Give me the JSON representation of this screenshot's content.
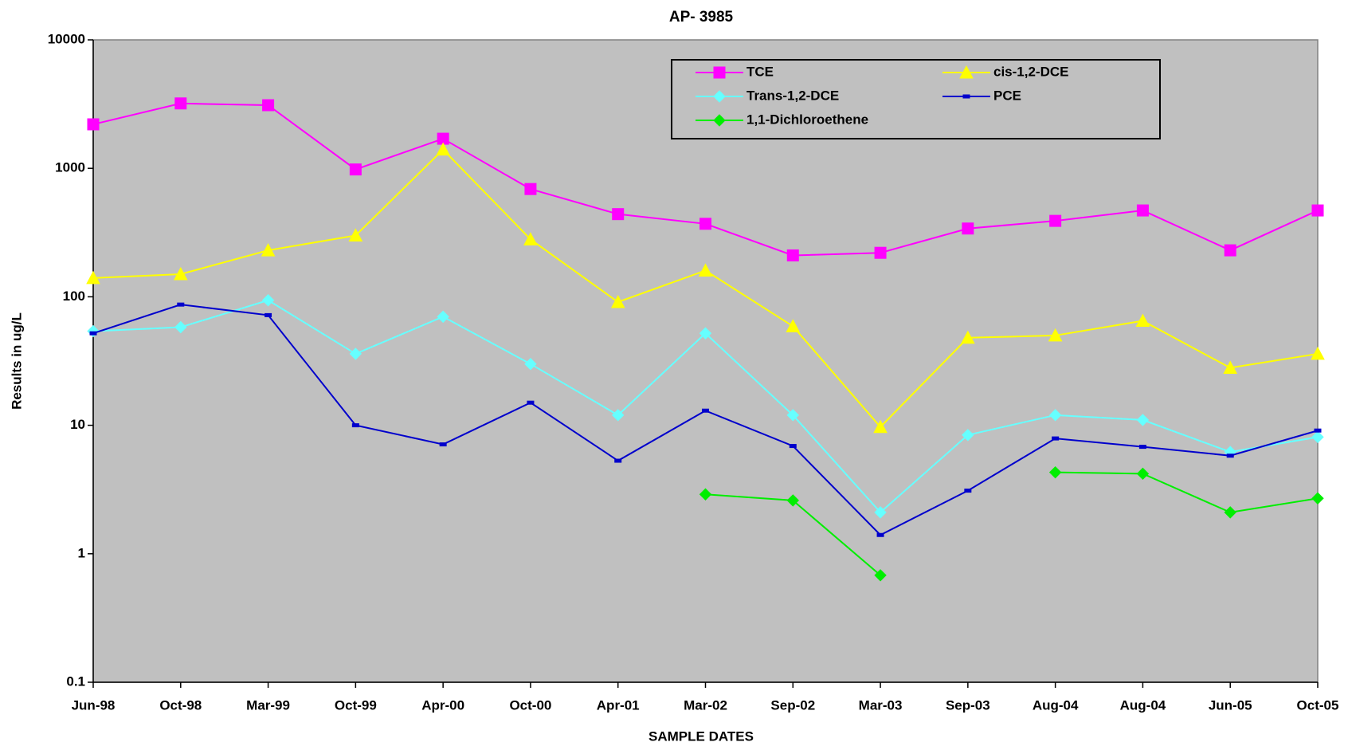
{
  "chart_data": {
    "type": "line",
    "title": "AP- 3985",
    "x_label": "SAMPLE DATES",
    "y_label": "Results in ug/L",
    "log_scale": true,
    "grid": false,
    "legend": "top-right",
    "plot_background": "#c0c0c0",
    "categories": [
      "Jun-98",
      "Oct-98",
      "Mar-99",
      "Oct-99",
      "Apr-00",
      "Oct-00",
      "Apr-01",
      "Mar-02",
      "Sep-02",
      "Mar-03",
      "Sep-03",
      "Aug-04",
      "Aug-04",
      "Jun-05",
      "Oct-05"
    ],
    "ylim": [
      0.1,
      10000
    ],
    "yticks": [
      0.1,
      1,
      10,
      100,
      1000,
      10000
    ],
    "series": [
      {
        "name": "TCE",
        "color": "#ff00ff",
        "marker": "square",
        "values": [
          2200,
          3200,
          3100,
          980,
          1700,
          690,
          440,
          370,
          210,
          220,
          340,
          390,
          470,
          230,
          470
        ]
      },
      {
        "name": "cis-1,2-DCE",
        "color": "#ffff00",
        "marker": "triangle",
        "values": [
          140,
          150,
          230,
          300,
          1400,
          280,
          91,
          160,
          59,
          9.7,
          48,
          50,
          65,
          28,
          36
        ]
      },
      {
        "name": "Trans-1,2-DCE",
        "color": "#66ffff",
        "marker": "diamond",
        "values": [
          54,
          58,
          94,
          36,
          70,
          30,
          12,
          52,
          12,
          2.1,
          8.4,
          12,
          11,
          6.2,
          8.1
        ]
      },
      {
        "name": "PCE",
        "color": "#0000cc",
        "marker": "dash",
        "values": [
          52,
          87,
          72,
          10,
          7.1,
          15,
          5.3,
          13,
          6.9,
          1.4,
          3.1,
          7.9,
          6.8,
          5.8,
          9.1
        ]
      },
      {
        "name": "1,1-Dichloroethene",
        "color": "#00ee00",
        "marker": "diamond",
        "values": [
          null,
          null,
          null,
          null,
          null,
          null,
          null,
          2.9,
          2.6,
          0.68,
          null,
          4.3,
          4.2,
          2.1,
          2.7
        ]
      }
    ]
  }
}
